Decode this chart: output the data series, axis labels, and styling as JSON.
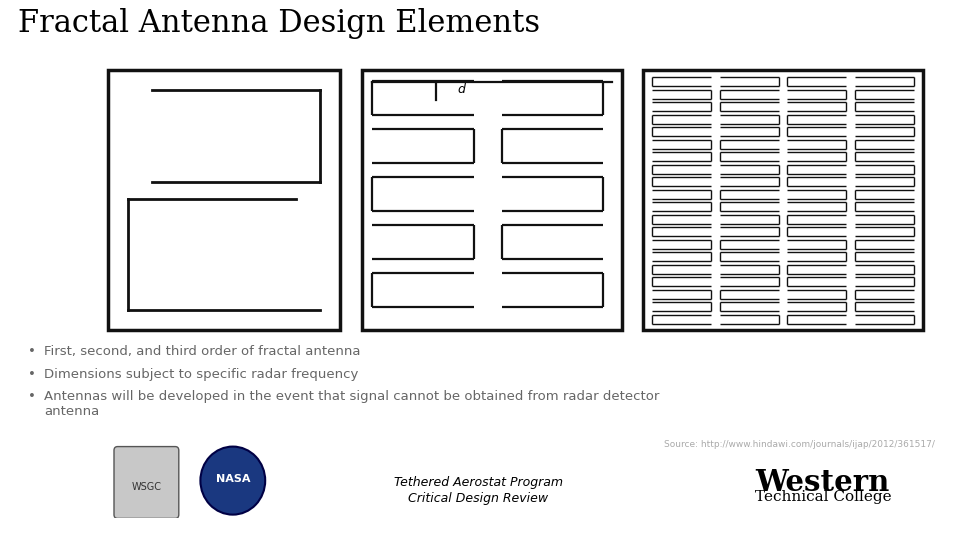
{
  "title": "Fractal Antenna Design Elements",
  "title_fontsize": 22,
  "bg_color": "#ffffff",
  "bullet_color": "#666666",
  "bullets": [
    "First, second, and third order of fractal antenna",
    "Dimensions subject to specific radar frequency",
    "Antennas will be developed in the event that signal cannot be obtained from radar detector\nantenna"
  ],
  "source_text": "Source: http://www.hindawi.com/journals/ijap/2012/361517/",
  "footer_text1": "Tethered Aerostat Program",
  "footer_text2": "Critical Design Review",
  "lc": "#111111",
  "panel1": [
    108,
    70,
    232,
    260
  ],
  "panel2": [
    362,
    70,
    260,
    260
  ],
  "panel3": [
    643,
    70,
    280,
    260
  ]
}
